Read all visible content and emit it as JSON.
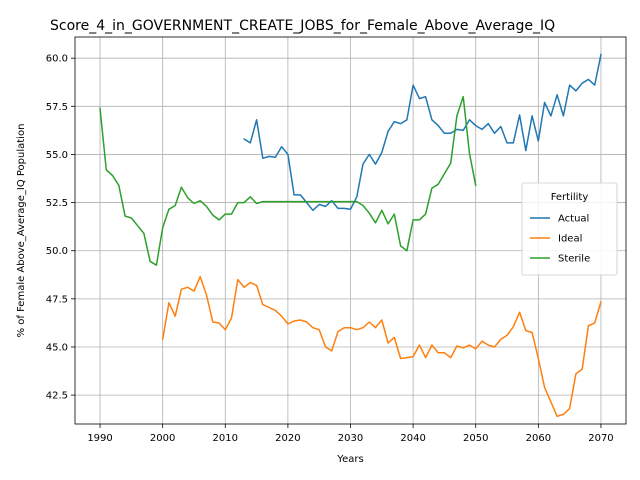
{
  "chart_data": {
    "type": "line",
    "title": "Score_4_in_GOVERNMENT_CREATE_JOBS_for_Female_Above_Average_IQ",
    "xlabel": "Years",
    "ylabel": "% of Female Above_Average_IQ Population",
    "xlim": [
      1986,
      2074
    ],
    "ylim": [
      41.0,
      61.1
    ],
    "xticks": [
      1990,
      2000,
      2010,
      2020,
      2030,
      2040,
      2050,
      2060,
      2070
    ],
    "yticks": [
      42.5,
      45.0,
      47.5,
      50.0,
      52.5,
      55.0,
      57.5,
      60.0
    ],
    "xtick_labels": [
      "1990",
      "2000",
      "2010",
      "2020",
      "2030",
      "2040",
      "2050",
      "2060",
      "2070"
    ],
    "ytick_labels": [
      "42.5",
      "45.0",
      "47.5",
      "50.0",
      "52.5",
      "55.0",
      "57.5",
      "60.0"
    ],
    "grid": true,
    "legend": {
      "title": "Fertility",
      "placement": "center-right"
    },
    "series": [
      {
        "name": "Actual",
        "color": "#1f77b4",
        "x": [
          2013,
          2014,
          2015,
          2016,
          2017,
          2018,
          2019,
          2020,
          2021,
          2022,
          2023,
          2024,
          2025,
          2026,
          2027,
          2028,
          2029,
          2030,
          2031,
          2032,
          2033,
          2034,
          2035,
          2036,
          2037,
          2038,
          2039,
          2040,
          2041,
          2042,
          2043,
          2044,
          2045,
          2046,
          2047,
          2048,
          2049,
          2050,
          2051,
          2052,
          2053,
          2054,
          2055,
          2056,
          2057,
          2058,
          2059,
          2060,
          2061,
          2062,
          2063,
          2064,
          2065,
          2066,
          2067,
          2068,
          2069,
          2070
        ],
        "values": [
          55.8,
          55.6,
          56.8,
          54.8,
          54.9,
          54.85,
          55.4,
          55.0,
          52.9,
          52.9,
          52.5,
          52.1,
          52.4,
          52.3,
          52.6,
          52.2,
          52.2,
          52.15,
          52.8,
          54.5,
          55.0,
          54.5,
          55.1,
          56.2,
          56.7,
          56.6,
          56.8,
          58.6,
          57.9,
          58.0,
          56.8,
          56.5,
          56.1,
          56.1,
          56.3,
          56.25,
          56.8,
          56.5,
          56.3,
          56.6,
          56.1,
          56.45,
          55.6,
          55.6,
          57.05,
          55.2,
          57.0,
          55.7,
          57.7,
          57.0,
          58.1,
          57.0,
          58.6,
          58.3,
          58.7,
          58.9,
          58.6,
          60.2
        ]
      },
      {
        "name": "Ideal",
        "color": "#ff7f0e",
        "x": [
          2000,
          2001,
          2002,
          2003,
          2004,
          2005,
          2006,
          2007,
          2008,
          2009,
          2010,
          2011,
          2012,
          2013,
          2014,
          2015,
          2016,
          2017,
          2018,
          2019,
          2020,
          2021,
          2022,
          2023,
          2024,
          2025,
          2026,
          2027,
          2028,
          2029,
          2030,
          2031,
          2032,
          2033,
          2034,
          2035,
          2036,
          2037,
          2038,
          2039,
          2040,
          2041,
          2042,
          2043,
          2044,
          2045,
          2046,
          2047,
          2048,
          2049,
          2050,
          2051,
          2052,
          2053,
          2054,
          2055,
          2056,
          2057,
          2058,
          2059,
          2060,
          2061,
          2062,
          2063,
          2064,
          2065,
          2066,
          2067,
          2068,
          2069,
          2070
        ],
        "values": [
          45.4,
          47.3,
          46.6,
          48.0,
          48.1,
          47.9,
          48.65,
          47.7,
          46.3,
          46.25,
          45.9,
          46.5,
          48.5,
          48.1,
          48.35,
          48.2,
          47.2,
          47.05,
          46.9,
          46.6,
          46.2,
          46.35,
          46.4,
          46.3,
          46.0,
          45.9,
          45.0,
          44.8,
          45.8,
          46.0,
          46.0,
          45.9,
          46.0,
          46.3,
          46.0,
          46.4,
          45.2,
          45.5,
          44.4,
          44.45,
          44.5,
          45.1,
          44.45,
          45.1,
          44.7,
          44.7,
          44.45,
          45.05,
          44.95,
          45.1,
          44.9,
          45.3,
          45.1,
          45.0,
          45.4,
          45.6,
          46.05,
          46.8,
          45.85,
          45.75,
          44.4,
          42.9,
          42.15,
          41.4,
          41.5,
          41.8,
          43.6,
          43.85,
          46.1,
          46.25,
          47.35
        ]
      },
      {
        "name": "Sterile",
        "color": "#2ca02c",
        "x": [
          1990,
          1991,
          1992,
          1993,
          1994,
          1995,
          1996,
          1997,
          1998,
          1999,
          2000,
          2001,
          2002,
          2003,
          2004,
          2005,
          2006,
          2007,
          2008,
          2009,
          2010,
          2011,
          2012,
          2013,
          2014,
          2015,
          2016,
          2017,
          2018,
          2019,
          2020,
          2021,
          2022,
          2023,
          2024,
          2025,
          2026,
          2027,
          2028,
          2029,
          2030,
          2031,
          2032,
          2033,
          2034,
          2035,
          2036,
          2037,
          2038,
          2039,
          2040,
          2041,
          2042,
          2043,
          2044,
          2045,
          2046,
          2047,
          2048,
          2049,
          2050
        ],
        "values": [
          57.4,
          54.2,
          53.9,
          53.4,
          51.8,
          51.7,
          51.3,
          50.9,
          49.45,
          49.25,
          51.2,
          52.15,
          52.35,
          53.3,
          52.75,
          52.45,
          52.6,
          52.3,
          51.85,
          51.6,
          51.9,
          51.9,
          52.5,
          52.5,
          52.8,
          52.45,
          52.55,
          52.55,
          52.55,
          52.55,
          52.55,
          52.55,
          52.55,
          52.55,
          52.55,
          52.55,
          52.55,
          52.55,
          52.55,
          52.55,
          52.55,
          52.55,
          52.35,
          51.95,
          51.45,
          52.1,
          51.4,
          51.9,
          50.25,
          50.0,
          51.6,
          51.6,
          51.9,
          53.25,
          53.45,
          54.0,
          54.55,
          57.0,
          58.0,
          55.05,
          53.4
        ]
      }
    ]
  }
}
